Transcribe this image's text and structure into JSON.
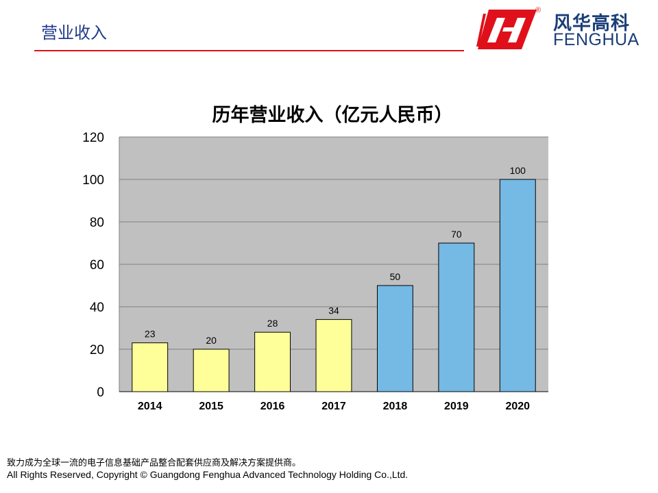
{
  "header": {
    "title": "营业收入"
  },
  "logo": {
    "cn": "风华高科",
    "en": "FENGHUA",
    "reg": "®",
    "brand_color": "#E0101A",
    "text_color": "#1B3E78"
  },
  "chart_data": {
    "type": "bar",
    "title": "历年营业收入（亿元人民币）",
    "categories": [
      "2014",
      "2015",
      "2016",
      "2017",
      "2018",
      "2019",
      "2020"
    ],
    "values": [
      23,
      20,
      28,
      34,
      50,
      70,
      100
    ],
    "bar_colors": [
      "#FFFF99",
      "#FFFF99",
      "#FFFF99",
      "#FFFF99",
      "#75B9E5",
      "#75B9E5",
      "#75B9E5"
    ],
    "ylim": [
      0,
      120
    ],
    "yticks": [
      0,
      20,
      40,
      60,
      80,
      100,
      120
    ],
    "grid": true,
    "plot_background": "#C0C0C0",
    "data_labels": true,
    "xlabel": "",
    "ylabel": ""
  },
  "footer": {
    "tagline": "致力成为全球一流的电子信息基础产品整合配套供应商及解决方案提供商。",
    "copyright": "All Rights Reserved, Copyright  © Guangdong Fenghua  Advanced Technology  Holding Co.,Ltd."
  }
}
